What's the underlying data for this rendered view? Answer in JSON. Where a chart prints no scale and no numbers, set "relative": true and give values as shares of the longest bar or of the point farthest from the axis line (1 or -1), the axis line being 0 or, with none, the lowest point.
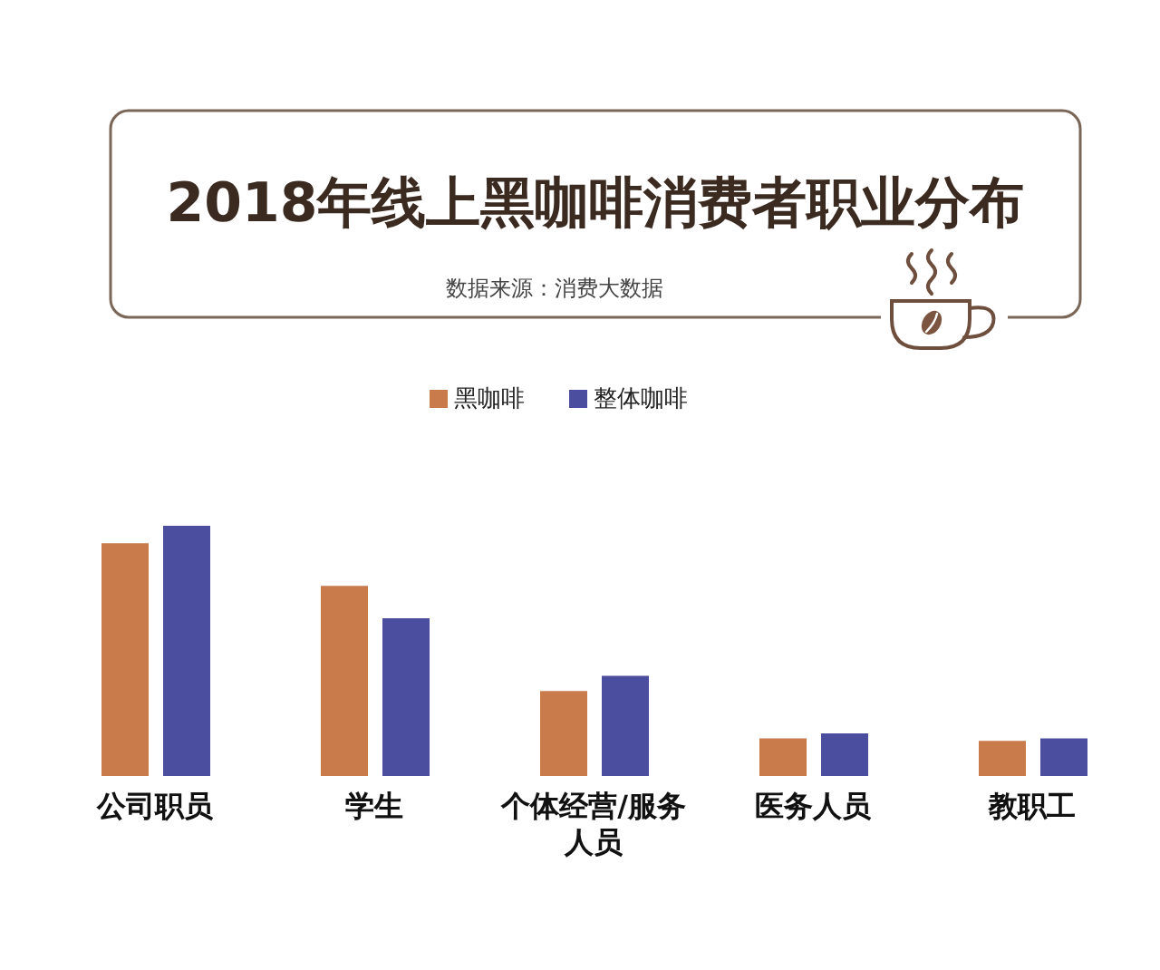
{
  "chart_data": {
    "type": "bar",
    "title": "2018年线上黑咖啡消费者职业分布",
    "annotations": [
      "数据来源：消费大数据"
    ],
    "categories": [
      "公司职员",
      "学生",
      "个体经营/服务人员",
      "医务人员",
      "教职工"
    ],
    "relative": true,
    "series": [
      {
        "name": "黑咖啡",
        "color": "#c97b4c",
        "values": [
          0.93,
          0.76,
          0.34,
          0.15,
          0.14
        ]
      },
      {
        "name": "整体咖啡",
        "color": "#4b4e9e",
        "values": [
          1,
          0.63,
          0.4,
          0.17,
          0.15
        ]
      }
    ],
    "legend": "top"
  }
}
